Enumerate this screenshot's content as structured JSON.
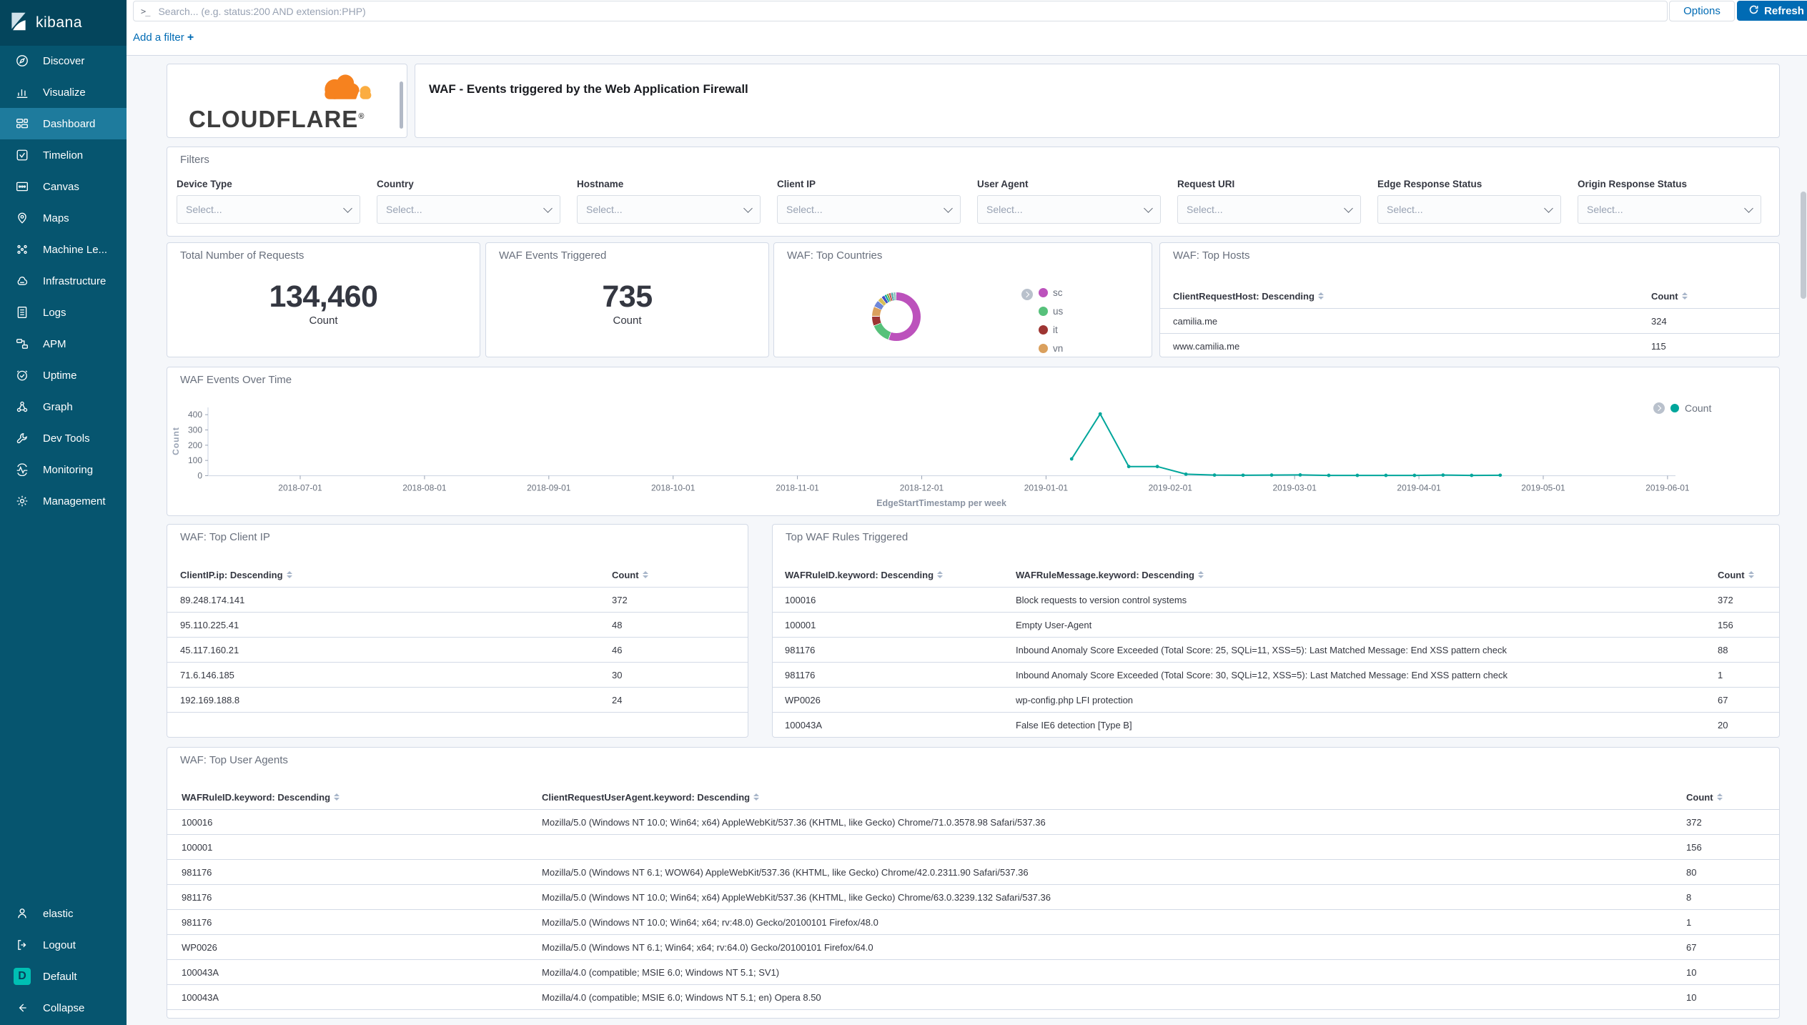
{
  "topbar": {
    "console_icon": ">_",
    "search_placeholder": "Search... (e.g. status:200 AND extension:PHP)",
    "options_label": "Options",
    "refresh_label": "Refresh"
  },
  "filter_bar": {
    "add_filter_label": "Add a filter",
    "plus": "+"
  },
  "sidebar": {
    "logo_text": "kibana",
    "items": [
      {
        "label": "Discover"
      },
      {
        "label": "Visualize"
      },
      {
        "label": "Dashboard"
      },
      {
        "label": "Timelion"
      },
      {
        "label": "Canvas"
      },
      {
        "label": "Maps"
      },
      {
        "label": "Machine Le..."
      },
      {
        "label": "Infrastructure"
      },
      {
        "label": "Logs"
      },
      {
        "label": "APM"
      },
      {
        "label": "Uptime"
      },
      {
        "label": "Graph"
      },
      {
        "label": "Dev Tools"
      },
      {
        "label": "Monitoring"
      },
      {
        "label": "Management"
      }
    ],
    "footer_items": [
      {
        "label": "elastic"
      },
      {
        "label": "Logout"
      },
      {
        "label": "Default",
        "badge": "D"
      },
      {
        "label": "Collapse"
      }
    ]
  },
  "header": {
    "brand": "CLOUDFLARE",
    "registered_mark": "®",
    "title": "WAF - Events triggered by the Web Application Firewall"
  },
  "filters": {
    "title": "Filters",
    "select_placeholder": "Select...",
    "fields": [
      "Device Type",
      "Country",
      "Hostname",
      "Client IP",
      "User Agent",
      "Request URI",
      "Edge Response Status",
      "Origin Response Status"
    ]
  },
  "metrics": [
    {
      "title": "Total Number of Requests",
      "value": "134,460",
      "unit": "Count"
    },
    {
      "title": "WAF Events Triggered",
      "value": "735",
      "unit": "Count"
    }
  ],
  "top_countries": {
    "title": "WAF: Top Countries"
  },
  "top_hosts": {
    "title": "WAF: Top Hosts",
    "columns": [
      "ClientRequestHost: Descending",
      "Count"
    ],
    "rows": [
      [
        "camilia.me",
        "324"
      ],
      [
        "www.camilia.me",
        "115"
      ]
    ]
  },
  "events_over_time": {
    "title": "WAF Events Over Time",
    "legend_label": "Count"
  },
  "top_client_ip": {
    "title": "WAF: Top Client IP",
    "columns": [
      "ClientIP.ip: Descending",
      "Count"
    ],
    "rows": [
      [
        "89.248.174.141",
        "372"
      ],
      [
        "95.110.225.41",
        "48"
      ],
      [
        "45.117.160.21",
        "46"
      ],
      [
        "71.6.146.185",
        "30"
      ],
      [
        "192.169.188.8",
        "24"
      ]
    ]
  },
  "top_waf_rules": {
    "title": "Top WAF Rules Triggered",
    "columns": [
      "WAFRuleID.keyword: Descending",
      "WAFRuleMessage.keyword: Descending",
      "Count"
    ],
    "rows": [
      [
        "100016",
        "Block requests to version control systems",
        "372"
      ],
      [
        "100001",
        "Empty User-Agent",
        "156"
      ],
      [
        "981176",
        "Inbound Anomaly Score Exceeded (Total Score: 25, SQLi=11, XSS=5): Last Matched Message: End XSS pattern check",
        "88"
      ],
      [
        "981176",
        "Inbound Anomaly Score Exceeded (Total Score: 30, SQLi=12, XSS=5): Last Matched Message: End XSS pattern check",
        "1"
      ],
      [
        "WP0026",
        "wp-config.php LFI protection",
        "67"
      ],
      [
        "100043A",
        "False IE6 detection [Type B]",
        "20"
      ]
    ]
  },
  "top_user_agents": {
    "title": "WAF: Top User Agents",
    "columns": [
      "WAFRuleID.keyword: Descending",
      "ClientRequestUserAgent.keyword: Descending",
      "Count"
    ],
    "rows": [
      [
        "100016",
        "Mozilla/5.0 (Windows NT 10.0; Win64; x64) AppleWebKit/537.36 (KHTML, like Gecko) Chrome/71.0.3578.98 Safari/537.36",
        "372"
      ],
      [
        "100001",
        "",
        "156"
      ],
      [
        "981176",
        "Mozilla/5.0 (Windows NT 6.1; WOW64) AppleWebKit/537.36 (KHTML, like Gecko) Chrome/42.0.2311.90 Safari/537.36",
        "80"
      ],
      [
        "981176",
        "Mozilla/5.0 (Windows NT 10.0; Win64; x64) AppleWebKit/537.36 (KHTML, like Gecko) Chrome/63.0.3239.132 Safari/537.36",
        "8"
      ],
      [
        "981176",
        "Mozilla/5.0 (Windows NT 10.0; Win64; x64; rv:48.0) Gecko/20100101 Firefox/48.0",
        "1"
      ],
      [
        "WP0026",
        "Mozilla/5.0 (Windows NT 6.1; Win64; x64; rv:64.0) Gecko/20100101 Firefox/64.0",
        "67"
      ],
      [
        "100043A",
        "Mozilla/4.0 (compatible; MSIE 6.0; Windows NT 5.1; SV1)",
        "10"
      ],
      [
        "100043A",
        "Mozilla/4.0 (compatible; MSIE 6.0; Windows NT 5.1; en) Opera 8.50",
        "10"
      ]
    ]
  },
  "colors": {
    "accent_blue": "#006BB4",
    "sidebar": "#06556F",
    "sidebar_active": "#1E7B9D",
    "line_series": "#00A69B",
    "default_badge": "#00BFB3",
    "panel_border": "#D3DAE6"
  },
  "chart_data": [
    {
      "type": "pie",
      "donut": true,
      "title": "WAF: Top Countries",
      "legend_position": "right",
      "slices": [
        {
          "label": "sc",
          "percent": 55.5,
          "color": "#bc52bc"
        },
        {
          "label": "us",
          "percent": 13.5,
          "color": "#57c17b"
        },
        {
          "label": "it",
          "percent": 6.5,
          "color": "#9e3533"
        },
        {
          "label": "vn",
          "percent": 6.5,
          "color": "#daa05d"
        },
        {
          "label": "",
          "percent": 4.5,
          "color": "#6f87d8"
        },
        {
          "label": "",
          "percent": 3.2,
          "color": "#d6bf57"
        },
        {
          "label": "",
          "percent": 2.3,
          "color": "#4150c4"
        },
        {
          "label": "",
          "percent": 1.5,
          "color": "#00a69b"
        },
        {
          "label": "",
          "percent": 1.5,
          "color": "#77ab41"
        },
        {
          "label": "",
          "percent": 1.5,
          "color": "#c0504d"
        },
        {
          "label": "",
          "percent": 1.5,
          "color": "#4ba3a6"
        },
        {
          "label": "",
          "percent": 2.0,
          "color": "#99c7c2"
        }
      ]
    },
    {
      "type": "line",
      "title": "WAF Events Over Time",
      "series_name": "Count",
      "color": "#00A69B",
      "xlabel": "EdgeStartTimestamp per week",
      "ylabel": "Count",
      "ylim": [
        0,
        400
      ],
      "yticks": [
        0,
        100,
        200,
        300,
        400
      ],
      "xticks": [
        "2018-07-01",
        "2018-08-01",
        "2018-09-01",
        "2018-10-01",
        "2018-11-01",
        "2018-12-01",
        "2019-01-01",
        "2019-02-01",
        "2019-03-01",
        "2019-04-01",
        "2019-05-01",
        "2019-06-01"
      ],
      "grid": false,
      "legend_position": "right",
      "points": [
        {
          "x": "2019-01-06",
          "y": 110
        },
        {
          "x": "2019-01-13",
          "y": 405
        },
        {
          "x": "2019-01-20",
          "y": 60
        },
        {
          "x": "2019-01-27",
          "y": 60
        },
        {
          "x": "2019-02-03",
          "y": 10
        },
        {
          "x": "2019-02-10",
          "y": 4
        },
        {
          "x": "2019-02-17",
          "y": 3
        },
        {
          "x": "2019-02-24",
          "y": 4
        },
        {
          "x": "2019-03-03",
          "y": 5
        },
        {
          "x": "2019-03-10",
          "y": 2
        },
        {
          "x": "2019-03-17",
          "y": 2
        },
        {
          "x": "2019-03-24",
          "y": 2
        },
        {
          "x": "2019-03-31",
          "y": 2
        },
        {
          "x": "2019-04-07",
          "y": 4
        },
        {
          "x": "2019-04-14",
          "y": 2
        },
        {
          "x": "2019-04-21",
          "y": 3
        }
      ]
    }
  ]
}
